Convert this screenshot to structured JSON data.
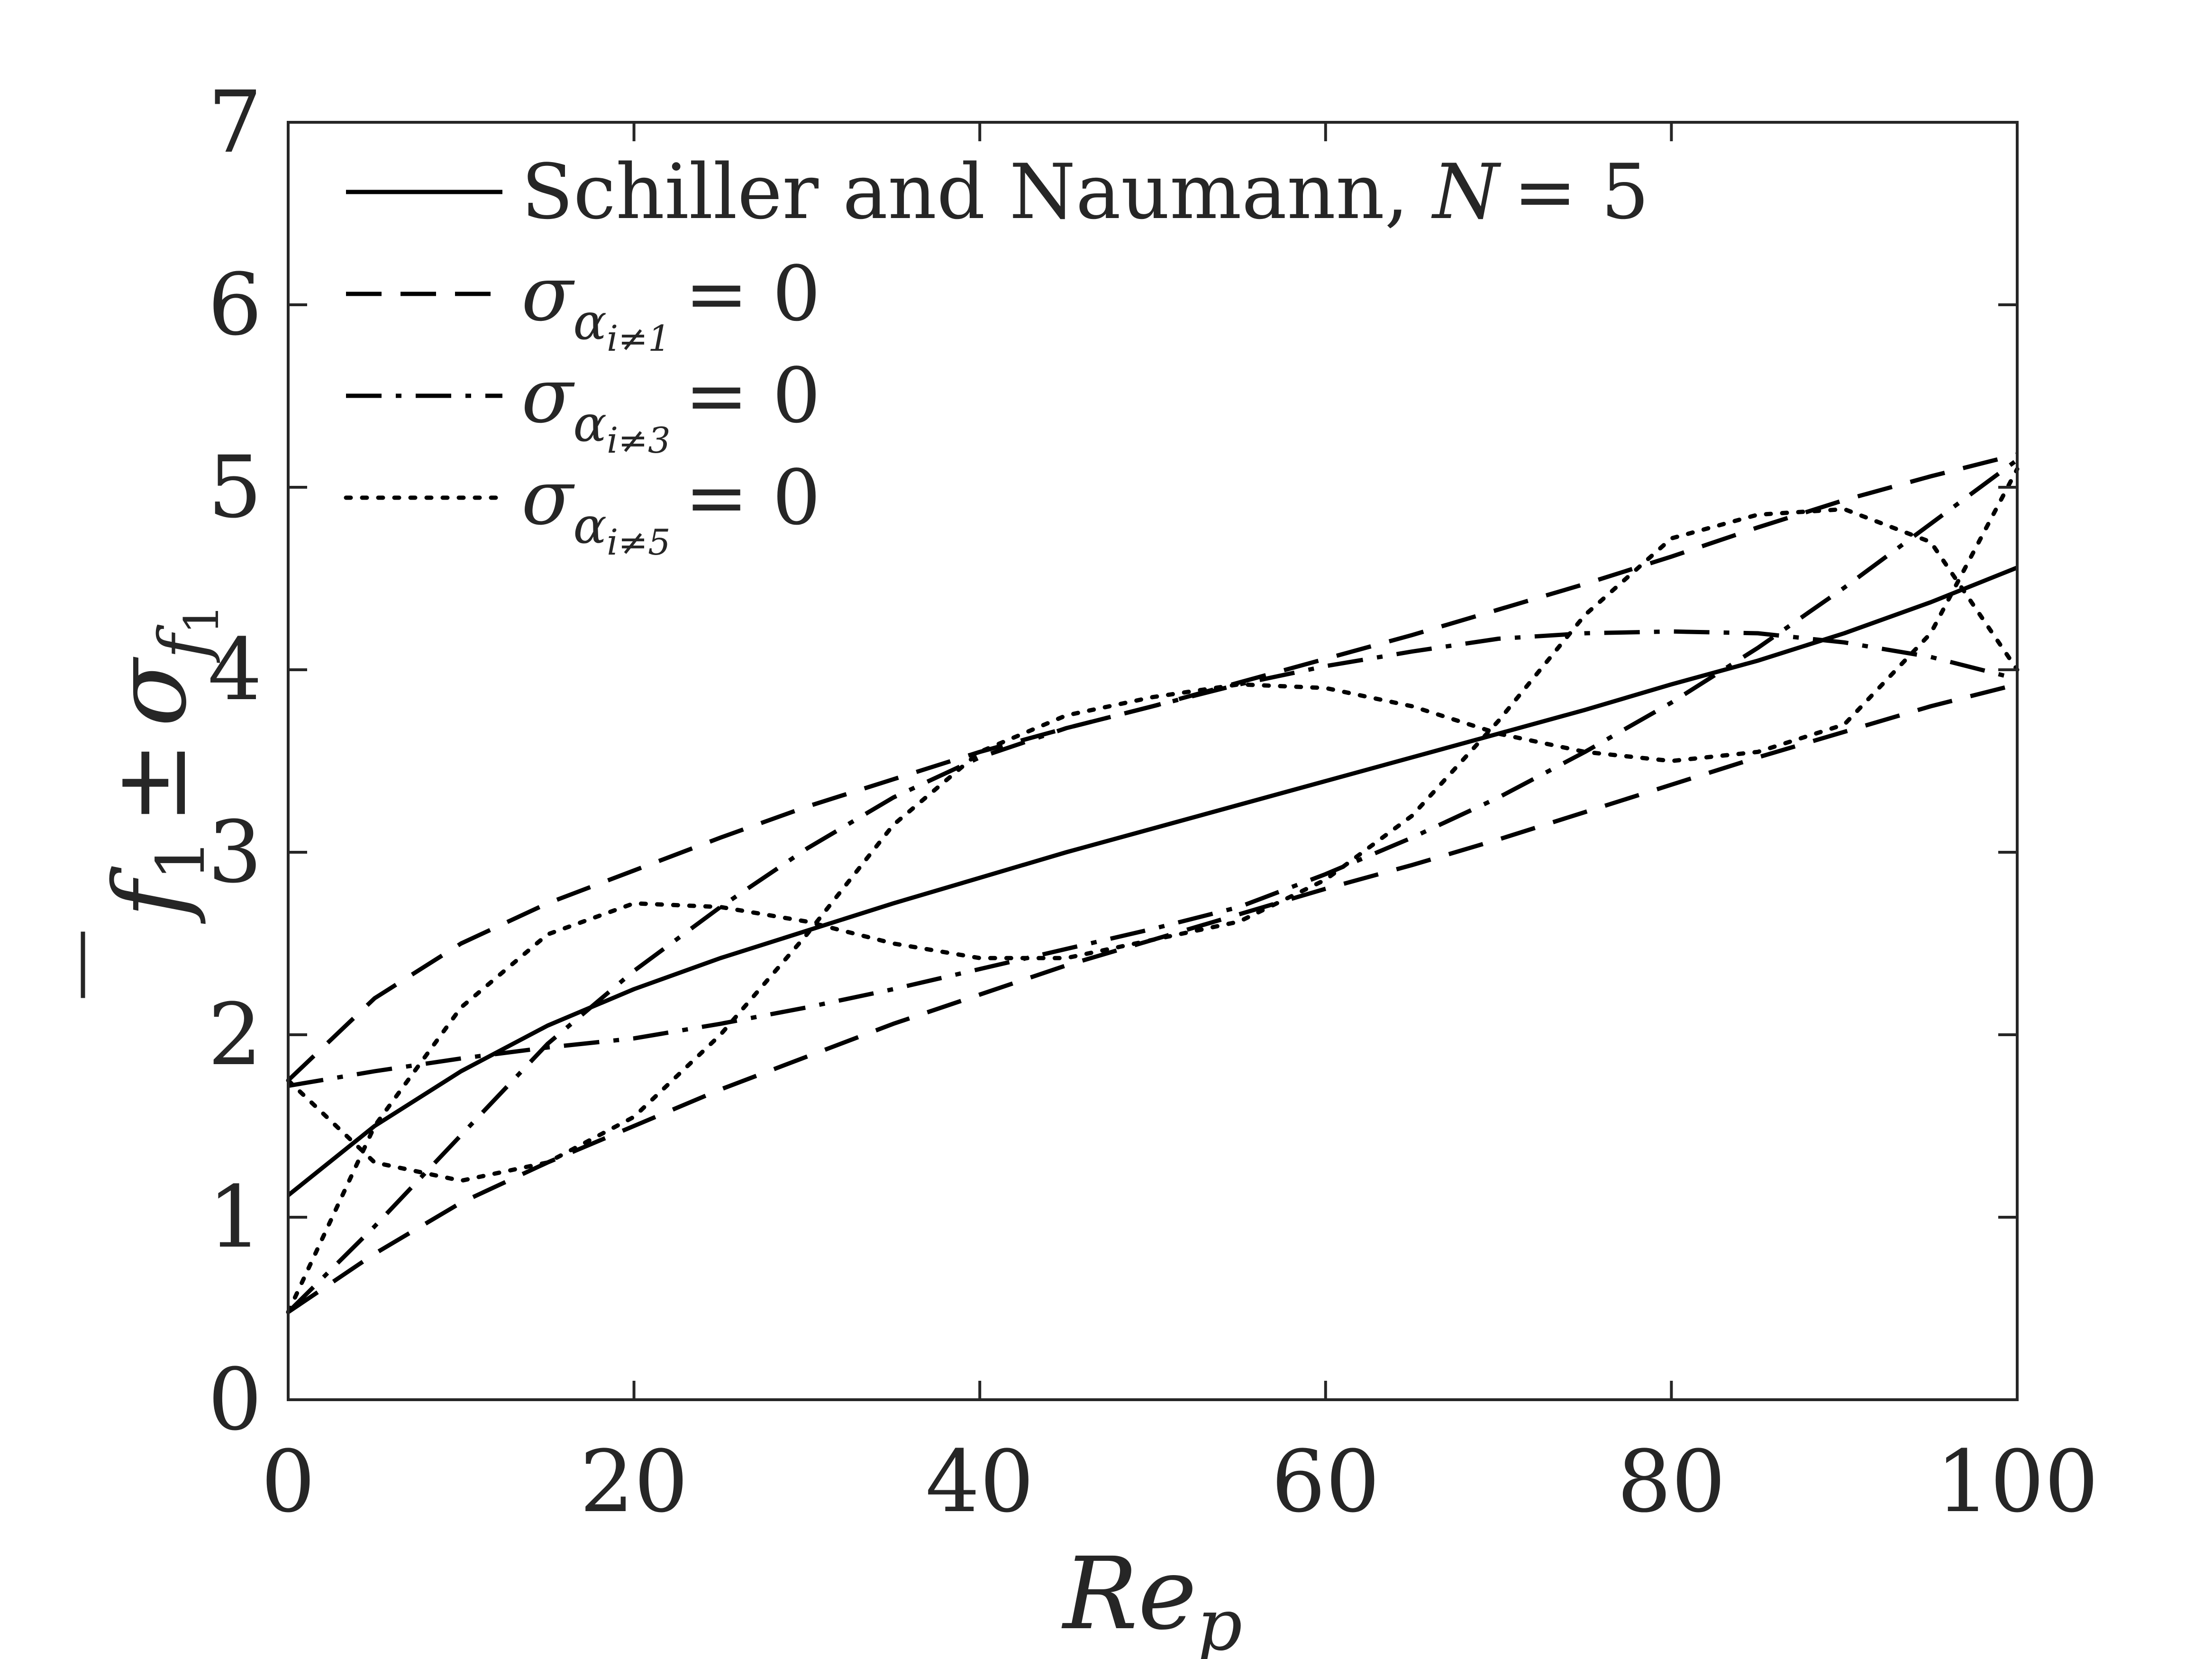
{
  "chart_data": {
    "type": "line",
    "title": "",
    "xlabel": "Re",
    "xlabel_sub": "p",
    "ylabel": "f",
    "ylabel_sub": "1",
    "ylabel_op": "±",
    "ylabel_sigma": "σ",
    "ylabel_sigma_sub": "f",
    "ylabel_sigma_subsub": "1",
    "xlim": [
      0,
      100
    ],
    "ylim": [
      0,
      7
    ],
    "x_ticks": [
      "0",
      "20",
      "40",
      "60",
      "80",
      "100"
    ],
    "y_ticks": [
      "0",
      "1",
      "2",
      "3",
      "4",
      "5",
      "6",
      "7"
    ],
    "grid": false,
    "legend_position": "top-left",
    "legend": [
      {
        "style": "solid",
        "text": "Schiller and Naumann, ",
        "math": "N",
        "rhs": "= 5"
      },
      {
        "style": "dashed",
        "sigma": "σ",
        "alpha": "α",
        "sub": "i≠1",
        "rhs": "= 0"
      },
      {
        "style": "dashdot",
        "sigma": "σ",
        "alpha": "α",
        "sub": "i≠3",
        "rhs": "= 0"
      },
      {
        "style": "dotted",
        "sigma": "σ",
        "alpha": "α",
        "sub": "i≠5",
        "rhs": "= 0"
      }
    ],
    "x": [
      0,
      5,
      10,
      15,
      20,
      25,
      30,
      35,
      40,
      45,
      50,
      55,
      60,
      65,
      70,
      75,
      80,
      85,
      90,
      95,
      100
    ],
    "series": [
      {
        "style": "solid",
        "values": [
          1.12,
          1.5,
          1.8,
          2.05,
          2.25,
          2.42,
          2.57,
          2.72,
          2.86,
          3.0,
          3.13,
          3.26,
          3.39,
          3.52,
          3.65,
          3.78,
          3.92,
          4.05,
          4.2,
          4.37,
          4.56
        ]
      },
      {
        "style": "dashed",
        "values": [
          1.75,
          2.2,
          2.5,
          2.72,
          2.9,
          3.08,
          3.25,
          3.4,
          3.55,
          3.68,
          3.8,
          3.93,
          4.06,
          4.19,
          4.33,
          4.47,
          4.62,
          4.78,
          4.93,
          5.06,
          5.18
        ]
      },
      {
        "style": "dashed",
        "values": [
          0.48,
          0.8,
          1.08,
          1.3,
          1.5,
          1.7,
          1.88,
          2.06,
          2.22,
          2.38,
          2.52,
          2.66,
          2.8,
          2.93,
          3.07,
          3.22,
          3.37,
          3.52,
          3.66,
          3.8,
          3.92
        ]
      },
      {
        "style": "dashdot",
        "values": [
          1.72,
          1.8,
          1.87,
          1.93,
          1.98,
          2.06,
          2.15,
          2.25,
          2.36,
          2.47,
          2.58,
          2.7,
          2.88,
          3.08,
          3.3,
          3.55,
          3.82,
          4.12,
          4.45,
          4.8,
          5.15
        ]
      },
      {
        "style": "dashdot",
        "values": [
          0.48,
          0.95,
          1.45,
          1.95,
          2.35,
          2.7,
          3.02,
          3.3,
          3.52,
          3.68,
          3.8,
          3.92,
          4.02,
          4.1,
          4.17,
          4.2,
          4.21,
          4.2,
          4.15,
          4.07,
          3.95
        ]
      },
      {
        "style": "dotted",
        "values": [
          1.75,
          1.3,
          1.2,
          1.3,
          1.55,
          2.0,
          2.55,
          3.15,
          3.55,
          3.75,
          3.85,
          3.92,
          3.9,
          3.8,
          3.65,
          3.55,
          3.5,
          3.55,
          3.7,
          4.2,
          5.1
        ]
      },
      {
        "style": "dotted",
        "values": [
          0.48,
          1.5,
          2.15,
          2.55,
          2.72,
          2.7,
          2.62,
          2.5,
          2.42,
          2.42,
          2.52,
          2.62,
          2.85,
          3.2,
          3.72,
          4.3,
          4.72,
          4.85,
          4.88,
          4.7,
          4.0
        ]
      }
    ]
  }
}
